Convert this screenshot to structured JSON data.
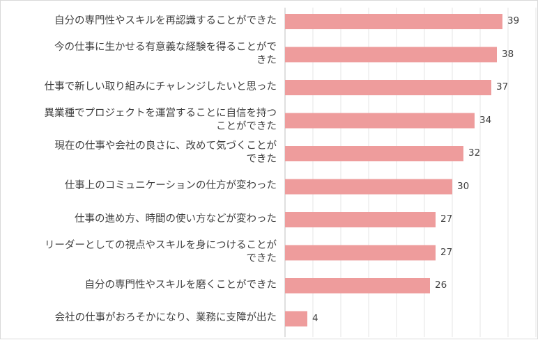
{
  "chart_data": {
    "type": "bar",
    "orientation": "horizontal",
    "categories": [
      "自分の専門性やスキルを再認識することができた",
      "今の仕事に生かせる有意義な経験を得ることがで\nきた",
      "仕事で新しい取り組みにチャレンジしたいと思った",
      "異業種でプロジェクトを運営することに自信を持つ\nことができた",
      "現在の仕事や会社の良さに、改めて気づくことが\nできた",
      "仕事上のコミュニケーションの仕方が変わった",
      "仕事の進め方、時間の使い方などが変わった",
      "リーダーとしての視点やスキルを身につけることが\nできた",
      "自分の専門性やスキルを磨くことができた",
      "会社の仕事がおろそかになり、業務に支障が出た"
    ],
    "values": [
      39,
      38,
      37,
      34,
      32,
      30,
      27,
      27,
      26,
      4
    ],
    "xlim": [
      0,
      45
    ],
    "grid": true,
    "bar_color": "#ee9c9c",
    "data_labels": true
  }
}
